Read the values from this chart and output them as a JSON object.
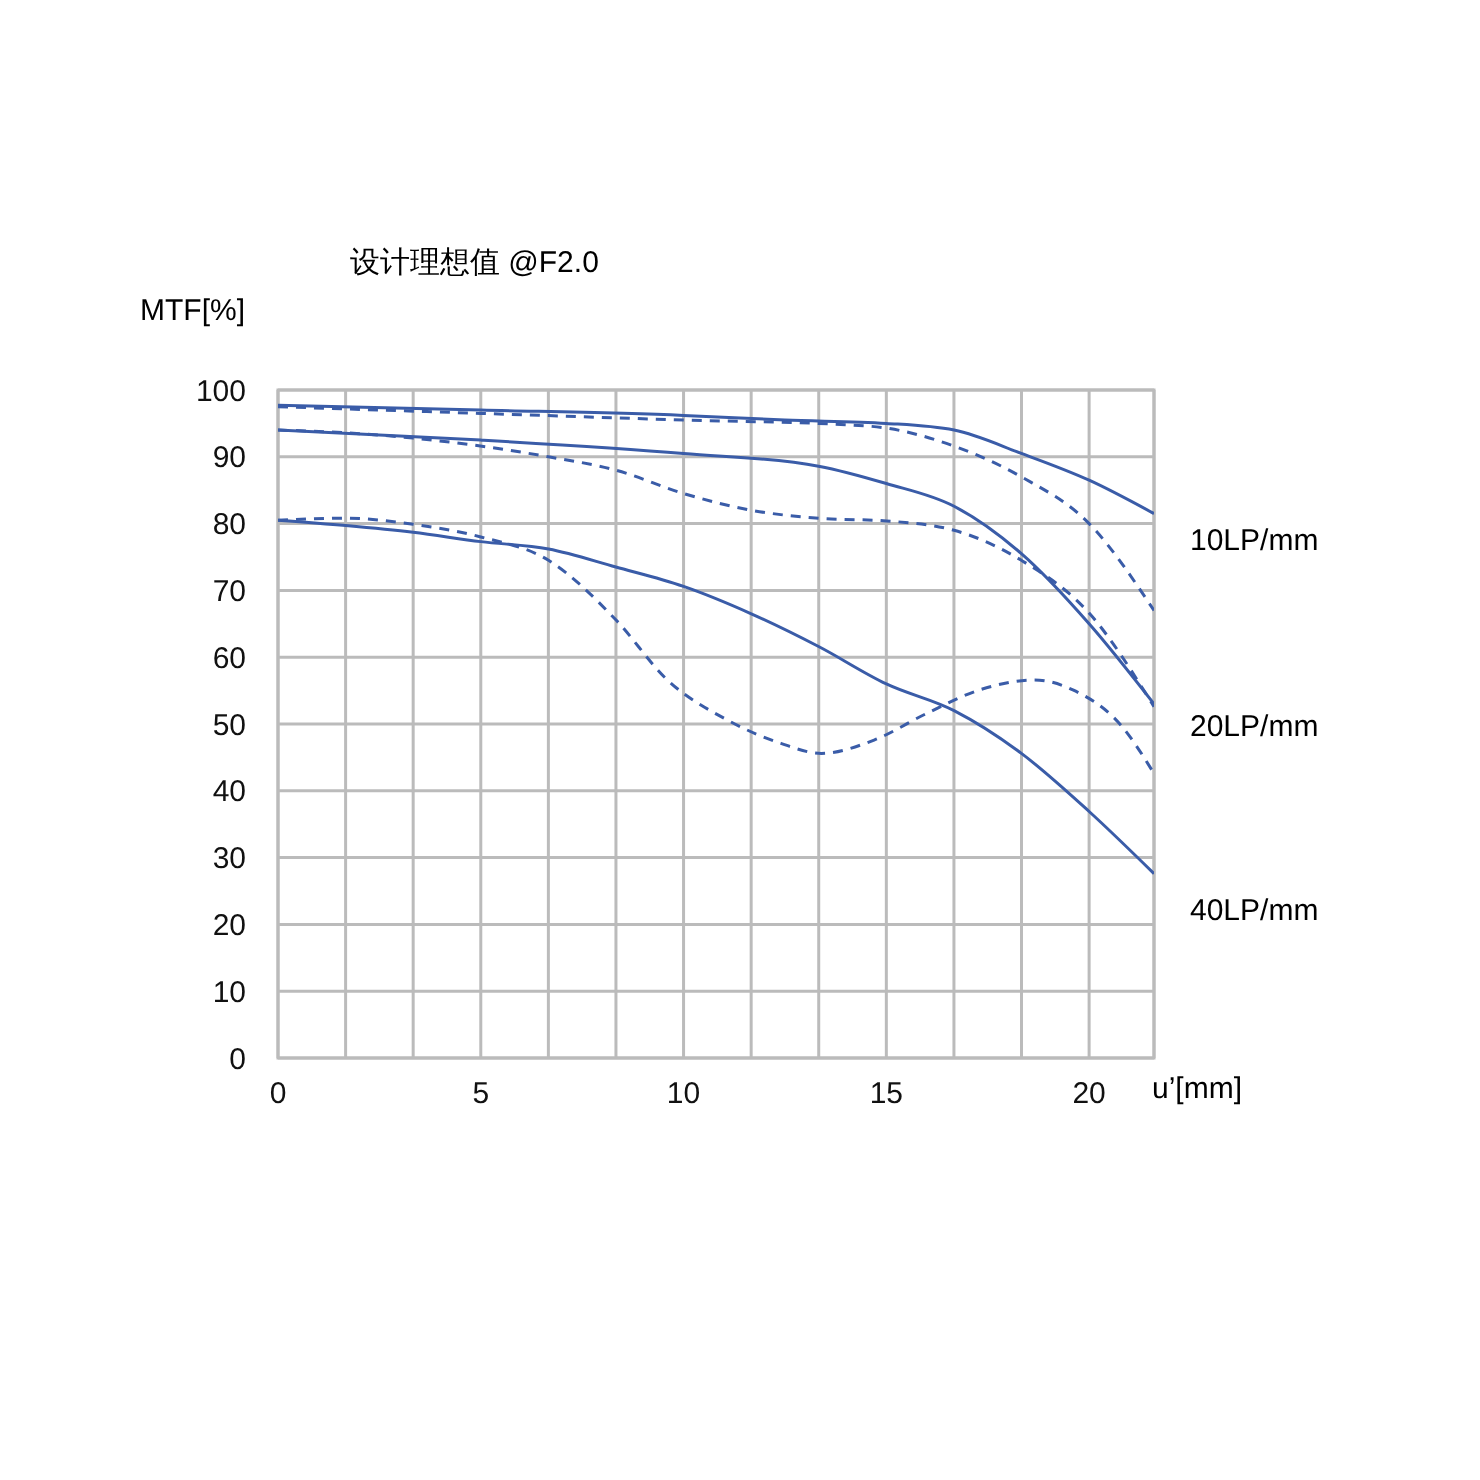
{
  "chart_data": {
    "type": "line",
    "title": "设计理想值 @F2.0",
    "ylabel": "MTF[%]",
    "xlabel": "u’[mm]",
    "xlim": [
      0,
      21.6
    ],
    "ylim": [
      0,
      100
    ],
    "xticks": [
      0,
      {
        "value": 1.667,
        "label": null
      },
      {
        "value": 3.333,
        "label": null
      },
      5,
      {
        "value": 6.667,
        "label": null
      },
      {
        "value": 8.333,
        "label": null
      },
      10,
      {
        "value": 11.667,
        "label": null
      },
      {
        "value": 13.333,
        "label": null
      },
      15,
      {
        "value": 16.667,
        "label": null
      },
      {
        "value": 18.333,
        "label": null
      },
      20
    ],
    "yticks": [
      0,
      10,
      20,
      30,
      40,
      50,
      60,
      70,
      80,
      90,
      100
    ],
    "grid": true,
    "legend": false,
    "marker": "none",
    "annotations": [
      "10LP/mm",
      "20LP/mm",
      "40LP/mm"
    ],
    "series": [
      {
        "color": "#3a5ca8",
        "line_style": "solid",
        "x": [
          0,
          5,
          10,
          12.5,
          15,
          16.67,
          18.33,
          20,
          21.6
        ],
        "values": [
          97.7,
          97,
          96.2,
          95.5,
          95,
          94,
          90.5,
          86.5,
          81.5
        ]
      },
      {
        "color": "#3a5ca8",
        "line_style": "dashed",
        "x": [
          0,
          5,
          10,
          14,
          15,
          16.67,
          18.33,
          20,
          21.6
        ],
        "values": [
          97.5,
          96.5,
          95.5,
          94.8,
          94.3,
          91.6,
          87,
          80,
          67
        ]
      },
      {
        "color": "#3a5ca8",
        "line_style": "solid",
        "x": [
          0,
          5,
          10,
          13.33,
          15,
          16.67,
          18.33,
          20,
          21.6
        ],
        "values": [
          94,
          92.5,
          90.5,
          88.6,
          86,
          82.6,
          75.5,
          65,
          53
        ]
      },
      {
        "color": "#3a5ca8",
        "line_style": "dashed",
        "x": [
          0,
          1.67,
          3.33,
          6.67,
          8.33,
          10,
          11.67,
          13.33,
          15,
          16.67,
          18.33,
          20,
          21.6
        ],
        "values": [
          94,
          93.6,
          92.8,
          90,
          88,
          84.5,
          82,
          80.8,
          80.4,
          79,
          74.5,
          66.6,
          52.6
        ]
      },
      {
        "color": "#3a5ca8",
        "line_style": "solid",
        "x": [
          0,
          1.67,
          3.33,
          5,
          6.67,
          8.33,
          10,
          11.67,
          13.33,
          15,
          16.67,
          18.33,
          20,
          21.6
        ],
        "values": [
          80.5,
          79.7,
          78.7,
          77.3,
          76.2,
          73.5,
          70.6,
          66.5,
          61.6,
          56,
          52,
          45.6,
          36.9,
          27.6
        ]
      },
      {
        "color": "#3a5ca8",
        "line_style": "dashed",
        "x": [
          0,
          1.67,
          3.33,
          5,
          6.67,
          8.33,
          9.6,
          11.08,
          12.4,
          13.4,
          14.7,
          16,
          17.3,
          18.65,
          19.6,
          20.8,
          21.6
        ],
        "values": [
          80.5,
          80.8,
          79.9,
          78,
          74.5,
          65.6,
          56.6,
          50.6,
          47.1,
          45.6,
          47.6,
          51.6,
          55.1,
          56.6,
          55.1,
          49.7,
          42.6
        ]
      }
    ]
  }
}
